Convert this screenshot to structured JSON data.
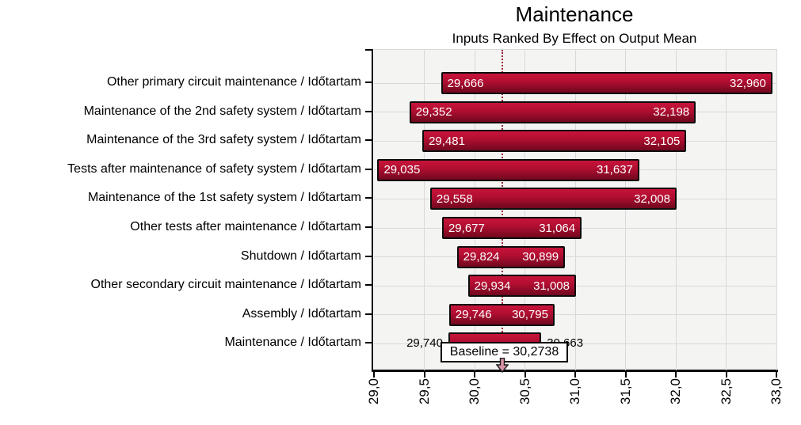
{
  "title": "Maintenance",
  "subtitle": "Inputs Ranked By Effect on Output Mean",
  "colors": {
    "bar_grad_top": "#c51339",
    "bar_grad_mid": "#b00e31",
    "bar_grad_bottom": "#70081e",
    "bar_border": "#0d0d0d",
    "bar_value_text": "#ffffff",
    "plot_bg": "#f4f4f3",
    "gridline": "#d9d9d9",
    "baseline_dotted_line": "#9b2235",
    "arrow_fill": "#d993a6",
    "arrow_outline": "#1a1a1a",
    "axis": "#000000"
  },
  "chart_data": {
    "type": "bar",
    "subtype": "tornado",
    "title": "Maintenance",
    "subtitle": "Inputs Ranked By Effect on Output Mean",
    "orientation": "horizontal",
    "grid": true,
    "legend": null,
    "xlim": [
      29.0,
      33.0
    ],
    "x_tick_values": [
      29.0,
      29.5,
      30.0,
      30.5,
      31.0,
      31.5,
      32.0,
      32.5,
      33.0
    ],
    "x_tick_labels": [
      "29,0",
      "29,5",
      "30,0",
      "30,5",
      "31,0",
      "31,5",
      "32,0",
      "32,5",
      "33,0"
    ],
    "baseline": 30.2738,
    "baseline_label": "Baseline = 30,2738",
    "categories": [
      "Other primary circuit maintenance / Időtartam",
      "Maintenance of the 2nd safety system / Időtartam",
      "Maintenance of the 3rd safety system / Időtartam",
      "Tests after maintenance of safety system / Időtartam",
      "Maintenance of the 1st safety system / Időtartam",
      "Other tests after maintenance / Időtartam",
      "Shutdown / Időtartam",
      "Other secondary circuit maintenance / Időtartam",
      "Assembly / Időtartam",
      "Maintenance / Időtartam"
    ],
    "series": [
      {
        "name": "low",
        "values": [
          29.666,
          29.352,
          29.481,
          29.035,
          29.558,
          29.677,
          29.824,
          29.934,
          29.746,
          29.74
        ]
      },
      {
        "name": "high",
        "values": [
          32.96,
          32.198,
          32.105,
          31.637,
          32.008,
          31.064,
          30.899,
          31.008,
          30.795,
          30.663
        ]
      }
    ],
    "low_labels": [
      "29,666",
      "29,352",
      "29,481",
      "29,035",
      "29,558",
      "29,677",
      "29,824",
      "29,934",
      "29,746",
      "29,740"
    ],
    "high_labels": [
      "32,960",
      "32,198",
      "32,105",
      "31,637",
      "32,008",
      "31,064",
      "30,899",
      "31,008",
      "30,795",
      "30,663"
    ],
    "outside_label_rows": [
      9
    ]
  }
}
